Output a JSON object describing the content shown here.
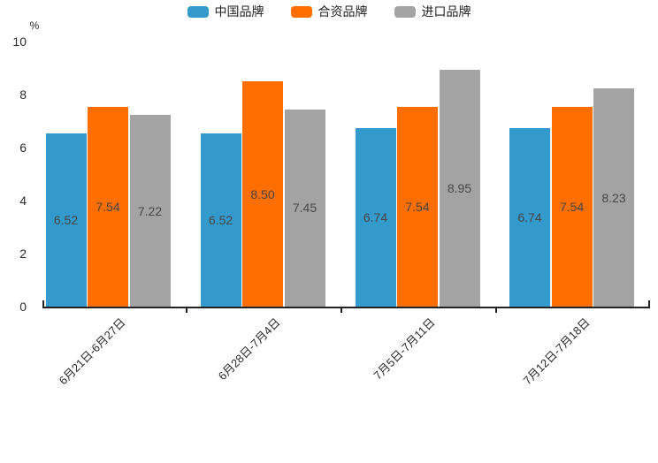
{
  "chart_data": {
    "type": "bar",
    "unit": "%",
    "categories": [
      "6月21日-6月27日",
      "6月28日-7月4日",
      "7月5日-7月11日",
      "7月12日-7月18日"
    ],
    "series": [
      {
        "name": "中国品牌",
        "color": "#3499CB",
        "values": [
          6.52,
          6.52,
          6.74,
          6.74
        ]
      },
      {
        "name": "合资品牌",
        "color": "#FF6E00",
        "values": [
          7.54,
          8.5,
          7.54,
          7.54
        ]
      },
      {
        "name": "进口品牌",
        "color": "#A3A3A3",
        "values": [
          7.22,
          7.45,
          8.95,
          8.23
        ]
      }
    ],
    "value_labels": [
      [
        "6.52",
        "7.54",
        "7.22"
      ],
      [
        "6.52",
        "8.50",
        "7.45"
      ],
      [
        "6.74",
        "7.54",
        "8.95"
      ],
      [
        "6.74",
        "7.54",
        "8.23"
      ]
    ],
    "ylim": [
      0,
      10
    ],
    "yticks": [
      "0",
      "2",
      "4",
      "6",
      "8",
      "10"
    ],
    "legend_position": "top-center",
    "grid": false,
    "colors": {
      "axis": "#222222",
      "tick_label": "#2b2b2b",
      "value_label": "#474747",
      "legend_label": "#222222",
      "background": "#ffffff"
    }
  }
}
